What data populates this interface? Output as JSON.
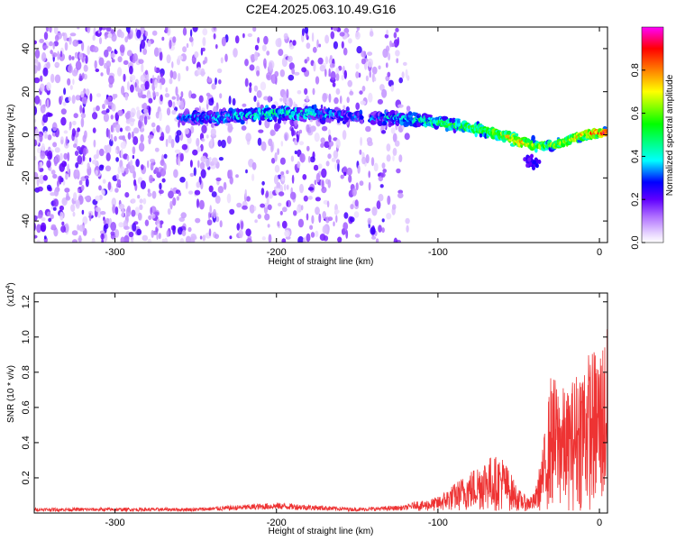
{
  "title": "C2E4.2025.063.10.49.G16",
  "chart_data": [
    {
      "type": "heatmap",
      "xlabel": "Height of straight line (km)",
      "ylabel": "Frequency (Hz)",
      "xlim": [
        -350,
        5
      ],
      "ylim": [
        -50,
        50
      ],
      "x_ticks": [
        -300,
        -200,
        -100,
        0
      ],
      "y_ticks": [
        -40,
        -20,
        0,
        20,
        40
      ],
      "colorbar": {
        "label": "Normalized spectral amplitude",
        "range": [
          0,
          1
        ],
        "ticks": [
          0.0,
          0.2,
          0.4,
          0.6,
          0.8
        ],
        "colormap": [
          "#ffffff",
          "#d9b3ff",
          "#8000ff",
          "#0000ff",
          "#00ffff",
          "#00ff00",
          "#ffff00",
          "#ff8000",
          "#ff0000",
          "#ff00ff"
        ]
      },
      "ridge": {
        "x": [
          -260,
          -240,
          -220,
          -200,
          -180,
          -160,
          -145,
          -130,
          -115,
          -100,
          -85,
          -70,
          -60,
          -50,
          -40,
          -30,
          -20,
          -10,
          0
        ],
        "freq_hz": [
          8,
          8,
          9,
          10,
          10,
          9,
          8,
          8,
          7,
          6,
          4,
          2,
          0,
          -3,
          -5,
          -5,
          -3,
          0,
          1
        ],
        "amplitude": [
          0.25,
          0.3,
          0.35,
          0.45,
          0.35,
          0.3,
          0.25,
          0.35,
          0.4,
          0.5,
          0.5,
          0.55,
          0.65,
          0.75,
          0.6,
          0.6,
          0.65,
          0.75,
          0.85
        ]
      }
    },
    {
      "type": "line",
      "xlabel": "Height of straight line (km)",
      "ylabel": "SNR (10 * v/v)",
      "scale_label": "(x10",
      "scale_exp": "4",
      "scale_close": ")",
      "xlim": [
        -350,
        5
      ],
      "ylim": [
        0,
        1.25
      ],
      "x_ticks": [
        -300,
        -200,
        -100,
        0
      ],
      "y_ticks": [
        0.2,
        0.4,
        0.6,
        0.8,
        1.0,
        1.2
      ],
      "series_color": "#ee3333",
      "envelope": {
        "x": [
          -350,
          -250,
          -200,
          -150,
          -120,
          -100,
          -80,
          -70,
          -60,
          -50,
          -45,
          -40,
          -35,
          -30,
          -25,
          -20,
          -10,
          0,
          5
        ],
        "y": [
          0.02,
          0.02,
          0.04,
          0.02,
          0.03,
          0.08,
          0.22,
          0.3,
          0.3,
          0.12,
          0.08,
          0.1,
          0.35,
          0.75,
          0.7,
          0.65,
          0.85,
          0.9,
          1.0
        ]
      }
    }
  ]
}
